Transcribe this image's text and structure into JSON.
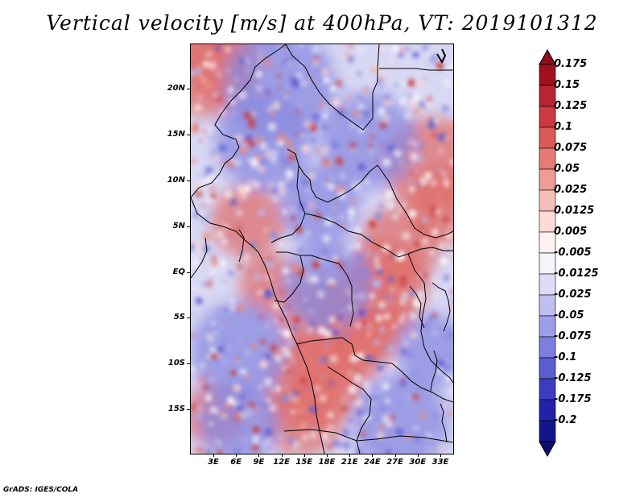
{
  "title": "Vertical velocity [m/s] at 400hPa, VT: 2019101312",
  "credit": "GrADS: IGES/COLA",
  "axes": {
    "lat_labels": [
      "20N",
      "15N",
      "10N",
      "5N",
      "EQ",
      "5S",
      "10S",
      "15S"
    ],
    "lon_labels": [
      "3E",
      "6E",
      "9E",
      "12E",
      "15E",
      "18E",
      "21E",
      "24E",
      "27E",
      "30E",
      "33E"
    ]
  },
  "colorbar": {
    "labels": [
      "0.175",
      "0.15",
      "0.125",
      "0.1",
      "0.075",
      "0.05",
      "0.025",
      "0.0125",
      "0.005",
      "-0.005",
      "-0.0125",
      "-0.025",
      "-0.05",
      "-0.075",
      "-0.1",
      "-0.125",
      "-0.175",
      "-0.2"
    ],
    "colors": [
      "#a0101e",
      "#b82530",
      "#cc3a40",
      "#da5a58",
      "#e67a74",
      "#ef9c96",
      "#f6beb8",
      "#fbdcd8",
      "#fff2f0",
      "#f4f4fb",
      "#dcdcf6",
      "#bebef0",
      "#9e9ee8",
      "#7e7ede",
      "#5c5cd0",
      "#3c3cc0",
      "#2222a8",
      "#14148c"
    ]
  },
  "map": {
    "region": "Central Africa",
    "lat_range": [
      -19,
      25
    ],
    "lon_range": [
      0,
      35
    ],
    "field": "vertical velocity",
    "level": "400hPa",
    "units": "m/s",
    "valid_time": "2019101312"
  }
}
